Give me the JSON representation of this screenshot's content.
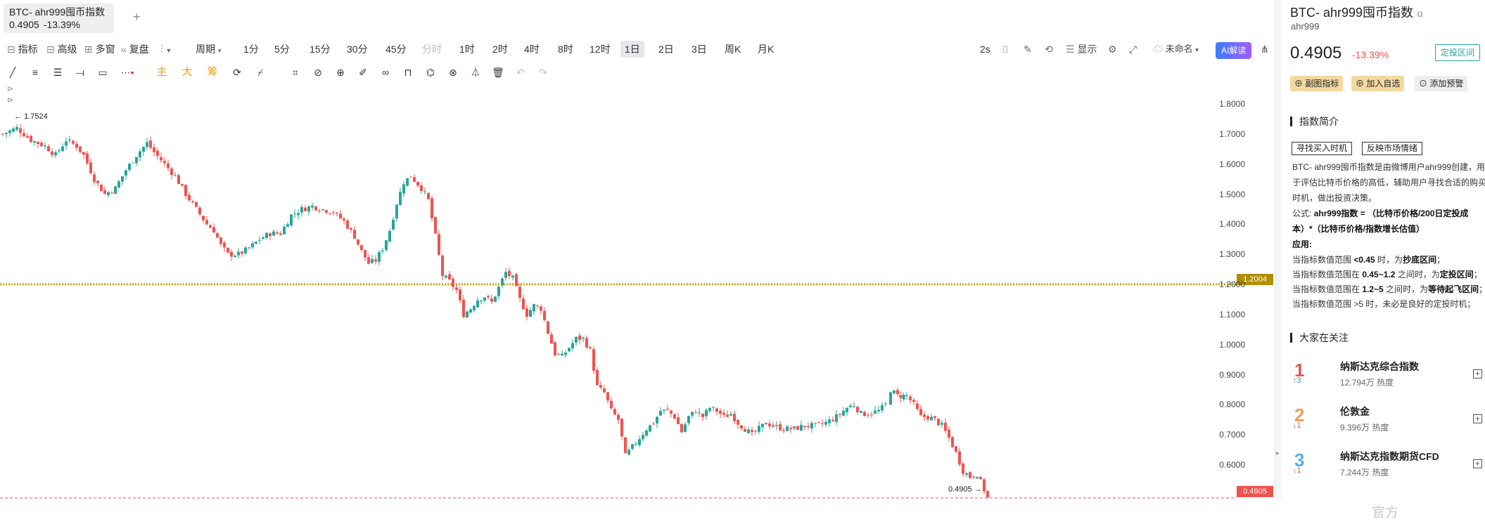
{
  "tab": {
    "title": "BTC- ahr999囤币指数",
    "value": "0.4905",
    "change": "-13.39%"
  },
  "toolbar": {
    "indicators": "指标",
    "advanced": "高级",
    "multi_window": "多窗",
    "replay": "复盘",
    "period": "周期",
    "timeframes": [
      "1分",
      "5分",
      "15分",
      "30分",
      "45分",
      "分时",
      "1时",
      "2时",
      "4时",
      "8时",
      "12时",
      "1日",
      "2日",
      "3日",
      "周K",
      "月K"
    ],
    "selected_timeframe": "1日",
    "refresh": "2s",
    "display": "显示",
    "layout_name": "未命名",
    "ai_button": "AI解读"
  },
  "drawing_tools": {
    "main": "主",
    "big": "大",
    "chip": "筹"
  },
  "chart": {
    "y_ticks": [
      "1.8000",
      "1.7000",
      "1.6000",
      "1.5000",
      "1.4000",
      "1.3000",
      "1.2000",
      "1.1000",
      "1.0000",
      "0.9000",
      "0.8000",
      "0.7000",
      "0.6000"
    ],
    "high_label": "1.7524",
    "low_label": "0.4905",
    "hline_label": "1.2004",
    "last_label": "0.4905",
    "watermark": "AiCoin官方",
    "up_color": "#26a69a",
    "down_color": "#ef5350",
    "hline_color": "#c8a200"
  },
  "sidebar": {
    "title": "BTC- ahr999囤币指数",
    "subtitle": "ahr999",
    "price": "0.4905",
    "change": "-13.39%",
    "range_badge": "定投区间",
    "btn_sub_indicator": "副图指标",
    "btn_add_watch": "加入自选",
    "btn_add_alert": "添加预警",
    "intro_heading": "指数简介",
    "tags": [
      "寻找买入时机",
      "反映市场情绪"
    ],
    "desc_lines": [
      "BTC- ahr999囤币指数是由微博用户ahr999创建，用",
      "于评估比特币价格的高低，辅助用户寻找合适的购买",
      "时机，做出投资决策。"
    ],
    "formula_label": "公式:",
    "formula_line1": "ahr999指数 = （比特币价格/200日定投成",
    "formula_line2": "本）*（比特币价格/指数增长估值）",
    "usage_label": "应用:",
    "usage_lines": [
      {
        "pre": "当指标数值范围 ",
        "b1": "<0.45",
        "mid": " 时，为",
        "b2": "抄底区间",
        "post": "；"
      },
      {
        "pre": "当指标数值范围在 ",
        "b1": "0.45~1.2",
        "mid": " 之间时，为",
        "b2": "定投区间",
        "post": "；"
      },
      {
        "pre": "当指标数值范围在 ",
        "b1": "1.2~5",
        "mid": " 之间时，为",
        "b2": "等待起飞区间",
        "post": "；"
      },
      {
        "pre": "当指标数值范围 >5 时，未必是良好的定投时机；",
        "b1": "",
        "mid": "",
        "b2": "",
        "post": ""
      }
    ],
    "watch_heading": "大家在关注",
    "watch": [
      {
        "rank": "1",
        "name": "纳斯达克综合指数",
        "heat": "12.794万 热度",
        "move": "↑3",
        "rank_color": "#e05a4e",
        "move_color": "#26a69a"
      },
      {
        "rank": "2",
        "name": "伦敦金",
        "heat": "9.396万 热度",
        "move": "↓1",
        "rank_color": "#f0a050",
        "move_color": "#ef5350"
      },
      {
        "rank": "3",
        "name": "纳斯达克指数期货CFD",
        "heat": "7.244万 热度",
        "move": "↓1",
        "rank_color": "#5ab0e0",
        "move_color": "#ef5350"
      }
    ]
  }
}
